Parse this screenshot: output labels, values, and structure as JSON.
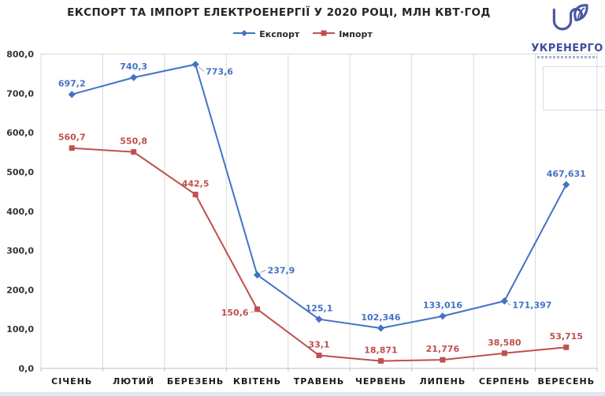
{
  "title": "ЕКСПОРТ ТА ІМПОРТ ЕЛЕКТРОЕНЕРГІЇ У 2020 РОЦІ, МЛН КВТ·ГОД",
  "logo": {
    "name": "УКРЕНЕРГО",
    "color": "#4c56a5"
  },
  "colors": {
    "export": "#4472c4",
    "import": "#c0504d",
    "gridline": "#d9d9d9",
    "axis_line": "#bfbfbf",
    "leader_line": "#a6a6a6",
    "axis_text": "#333333",
    "category_text": "#1a1a1a",
    "bottom_strip": "#dfe7f0"
  },
  "chart_data": {
    "type": "line",
    "title": "ЕКСПОРТ ТА ІМПОРТ ЕЛЕКТРОЕНЕРГІЇ У 2020 РОЦІ, МЛН КВТ·ГОД",
    "categories": [
      "СІЧЕНЬ",
      "ЛЮТИЙ",
      "БЕРЕЗЕНЬ",
      "КВІТЕНЬ",
      "ТРАВЕНЬ",
      "ЧЕРВЕНЬ",
      "ЛИПЕНЬ",
      "СЕРПЕНЬ",
      "ВЕРЕСЕНЬ"
    ],
    "ylim": [
      0,
      800
    ],
    "yticks": [
      0,
      100,
      200,
      300,
      400,
      500,
      600,
      700,
      800
    ],
    "ytick_labels": [
      "0,0",
      "100,0",
      "200,0",
      "300,0",
      "400,0",
      "500,0",
      "600,0",
      "700,0",
      "800,0"
    ],
    "grid": "vertical-only",
    "legend_position": "top-center",
    "series": [
      {
        "name": "Експорт",
        "color": "#4472c4",
        "marker": "diamond",
        "values": [
          697.2,
          740.3,
          773.6,
          237.9,
          125.1,
          102.346,
          133.016,
          171.397,
          467.631
        ],
        "point_labels": [
          {
            "text": "697,2",
            "pos": "above"
          },
          {
            "text": "740,3",
            "pos": "above"
          },
          {
            "text": "773,6",
            "pos": "right",
            "dx": 13,
            "dy": 13,
            "leader": true
          },
          {
            "text": "237,9",
            "pos": "right",
            "dx": 13,
            "dy": -2,
            "leader": true
          },
          {
            "text": "125,1",
            "pos": "above"
          },
          {
            "text": "102,346",
            "pos": "above"
          },
          {
            "text": "133,016",
            "pos": "above"
          },
          {
            "text": "171,397",
            "pos": "right",
            "dx": 10,
            "dy": 9,
            "leader": true
          },
          {
            "text": "467,631",
            "pos": "above"
          }
        ]
      },
      {
        "name": "Імпорт",
        "color": "#c0504d",
        "marker": "square",
        "values": [
          560.7,
          550.8,
          442.5,
          150.6,
          33.1,
          18.871,
          21.776,
          38.58,
          53.715
        ],
        "point_labels": [
          {
            "text": "560,7",
            "pos": "above"
          },
          {
            "text": "550,8",
            "pos": "above"
          },
          {
            "text": "442,5",
            "pos": "above"
          },
          {
            "text": "150,6",
            "pos": "left",
            "dx": -11,
            "dy": 8,
            "leader": true
          },
          {
            "text": "33,1",
            "pos": "above"
          },
          {
            "text": "18,871",
            "pos": "above"
          },
          {
            "text": "21,776",
            "pos": "above"
          },
          {
            "text": "38,580",
            "pos": "above"
          },
          {
            "text": "53,715",
            "pos": "above"
          }
        ]
      }
    ]
  }
}
